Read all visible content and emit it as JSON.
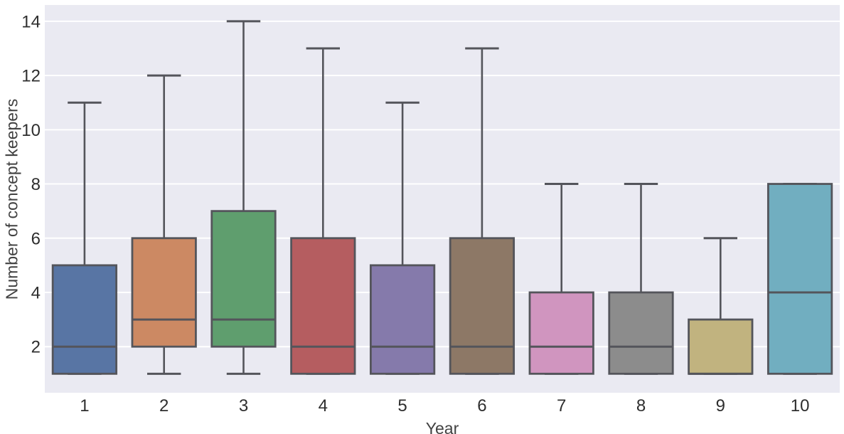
{
  "chart_data": {
    "type": "boxplot",
    "title": "",
    "xlabel": "Year",
    "ylabel": "Number of concept keepers",
    "categories": [
      "1",
      "2",
      "3",
      "4",
      "5",
      "6",
      "7",
      "8",
      "9",
      "10"
    ],
    "yticks": [
      2,
      4,
      6,
      8,
      10,
      12,
      14
    ],
    "ylim": [
      0.3,
      14.6
    ],
    "grid": {
      "axis": "y",
      "color": "#ffffff",
      "on": true
    },
    "legend": "none",
    "colors": {
      "plot_background": "#eaeaf2",
      "figure_background": "#ffffff",
      "box_line": "#54555b",
      "tick_label": "#2e2e2e",
      "axis_label": "#424242"
    },
    "series": [
      {
        "category": "1",
        "whisker_low": 1,
        "q1": 1,
        "median": 2,
        "q3": 5,
        "whisker_high": 11,
        "fill": "#5875a4"
      },
      {
        "category": "2",
        "whisker_low": 1,
        "q1": 2,
        "median": 3,
        "q3": 6,
        "whisker_high": 12,
        "fill": "#cc8963"
      },
      {
        "category": "3",
        "whisker_low": 1,
        "q1": 2,
        "median": 3,
        "q3": 7,
        "whisker_high": 14,
        "fill": "#5f9e6e"
      },
      {
        "category": "4",
        "whisker_low": 1,
        "q1": 1,
        "median": 2,
        "q3": 6,
        "whisker_high": 13,
        "fill": "#b55d60"
      },
      {
        "category": "5",
        "whisker_low": 1,
        "q1": 1,
        "median": 2,
        "q3": 5,
        "whisker_high": 11,
        "fill": "#857aab"
      },
      {
        "category": "6",
        "whisker_low": 1,
        "q1": 1,
        "median": 2,
        "q3": 6,
        "whisker_high": 13,
        "fill": "#8d7866"
      },
      {
        "category": "7",
        "whisker_low": 1,
        "q1": 1,
        "median": 2,
        "q3": 4,
        "whisker_high": 8,
        "fill": "#d095bf"
      },
      {
        "category": "8",
        "whisker_low": 1,
        "q1": 1,
        "median": 2,
        "q3": 4,
        "whisker_high": 8,
        "fill": "#8c8c8c"
      },
      {
        "category": "9",
        "whisker_low": 1,
        "q1": 1,
        "median": 1,
        "q3": 3,
        "whisker_high": 6,
        "fill": "#c1b37f"
      },
      {
        "category": "10",
        "whisker_low": 1,
        "q1": 1,
        "median": 4,
        "q3": 8,
        "whisker_high": 8,
        "fill": "#71aec0"
      }
    ]
  }
}
